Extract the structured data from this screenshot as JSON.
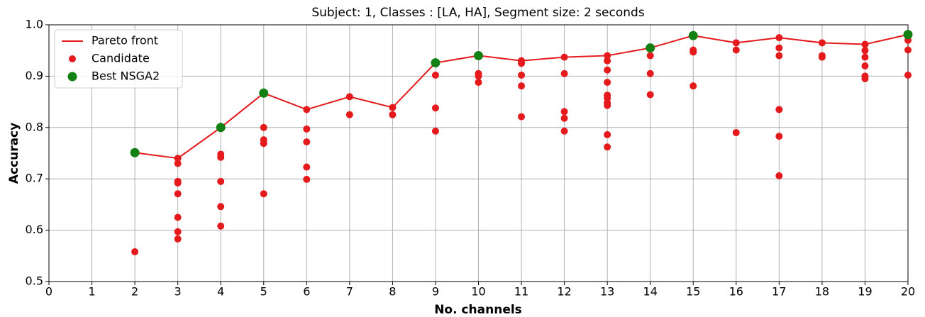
{
  "chart_data": {
    "type": "scatter",
    "title": "Subject: 1, Classes : [LA, HA], Segment size: 2 seconds",
    "x_label": "No. channels",
    "y_label": "Accuracy",
    "xlim": [
      0,
      20
    ],
    "ylim": [
      0.5,
      1
    ],
    "xticks": [
      0,
      1,
      2,
      3,
      4,
      5,
      6,
      7,
      8,
      9,
      10,
      11,
      12,
      13,
      14,
      15,
      16,
      17,
      18,
      19,
      20
    ],
    "yticks": [
      0.5,
      0.6,
      0.7,
      0.8,
      0.9,
      {
        "value": 1,
        "label": "1.0"
      }
    ],
    "grid": true,
    "legend": "upper left",
    "series": [
      {
        "name": "Pareto front",
        "kind": "line",
        "color": "#e41a1c",
        "x": [
          2,
          3,
          4,
          5,
          6,
          7,
          8,
          9,
          10,
          11,
          12,
          13,
          14,
          15,
          16,
          17,
          18,
          19,
          20
        ],
        "values": [
          0.751,
          0.74,
          0.8,
          0.867,
          0.835,
          0.86,
          0.839,
          0.926,
          0.94,
          0.93,
          0.937,
          0.94,
          0.955,
          0.979,
          0.965,
          0.975,
          0.965,
          0.962,
          0.981
        ]
      },
      {
        "name": "Candidate",
        "kind": "scatter",
        "color": "#e41a1c",
        "x": [
          2,
          2,
          3,
          3,
          3,
          3,
          3,
          3,
          3,
          3,
          4,
          4,
          4,
          4,
          4,
          4,
          5,
          5,
          5,
          5,
          5,
          6,
          6,
          6,
          6,
          6,
          7,
          7,
          8,
          8,
          9,
          9,
          9,
          9,
          10,
          10,
          10,
          10,
          11,
          11,
          11,
          11,
          11,
          12,
          12,
          12,
          12,
          12,
          13,
          13,
          13,
          13,
          13,
          13,
          13,
          13,
          13,
          13,
          14,
          14,
          14,
          14,
          15,
          15,
          15,
          15,
          16,
          16,
          16,
          17,
          17,
          17,
          17,
          17,
          17,
          18,
          18,
          18,
          19,
          19,
          19,
          19,
          19,
          19,
          20,
          20,
          20,
          20
        ],
        "values": [
          0.751,
          0.558,
          0.74,
          0.73,
          0.695,
          0.692,
          0.671,
          0.625,
          0.597,
          0.583,
          0.8,
          0.748,
          0.742,
          0.695,
          0.646,
          0.608,
          0.867,
          0.8,
          0.776,
          0.769,
          0.671,
          0.835,
          0.797,
          0.772,
          0.723,
          0.699,
          0.86,
          0.825,
          0.839,
          0.825,
          0.926,
          0.902,
          0.838,
          0.793,
          0.94,
          0.905,
          0.9,
          0.888,
          0.93,
          0.925,
          0.902,
          0.881,
          0.821,
          0.937,
          0.905,
          0.831,
          0.818,
          0.793,
          0.94,
          0.93,
          0.912,
          0.888,
          0.863,
          0.857,
          0.848,
          0.843,
          0.786,
          0.762,
          0.955,
          0.94,
          0.905,
          0.864,
          0.979,
          0.951,
          0.947,
          0.881,
          0.965,
          0.951,
          0.79,
          0.975,
          0.955,
          0.94,
          0.835,
          0.783,
          0.706,
          0.965,
          0.94,
          0.937,
          0.962,
          0.95,
          0.937,
          0.92,
          0.9,
          0.895,
          0.981,
          0.97,
          0.951,
          0.902
        ]
      },
      {
        "name": "Best NSGA2",
        "kind": "scatter",
        "color": "#128012",
        "x": [
          2,
          4,
          5,
          9,
          10,
          14,
          15,
          20
        ],
        "values": [
          0.751,
          0.8,
          0.867,
          0.926,
          0.94,
          0.955,
          0.979,
          0.981
        ]
      }
    ]
  }
}
